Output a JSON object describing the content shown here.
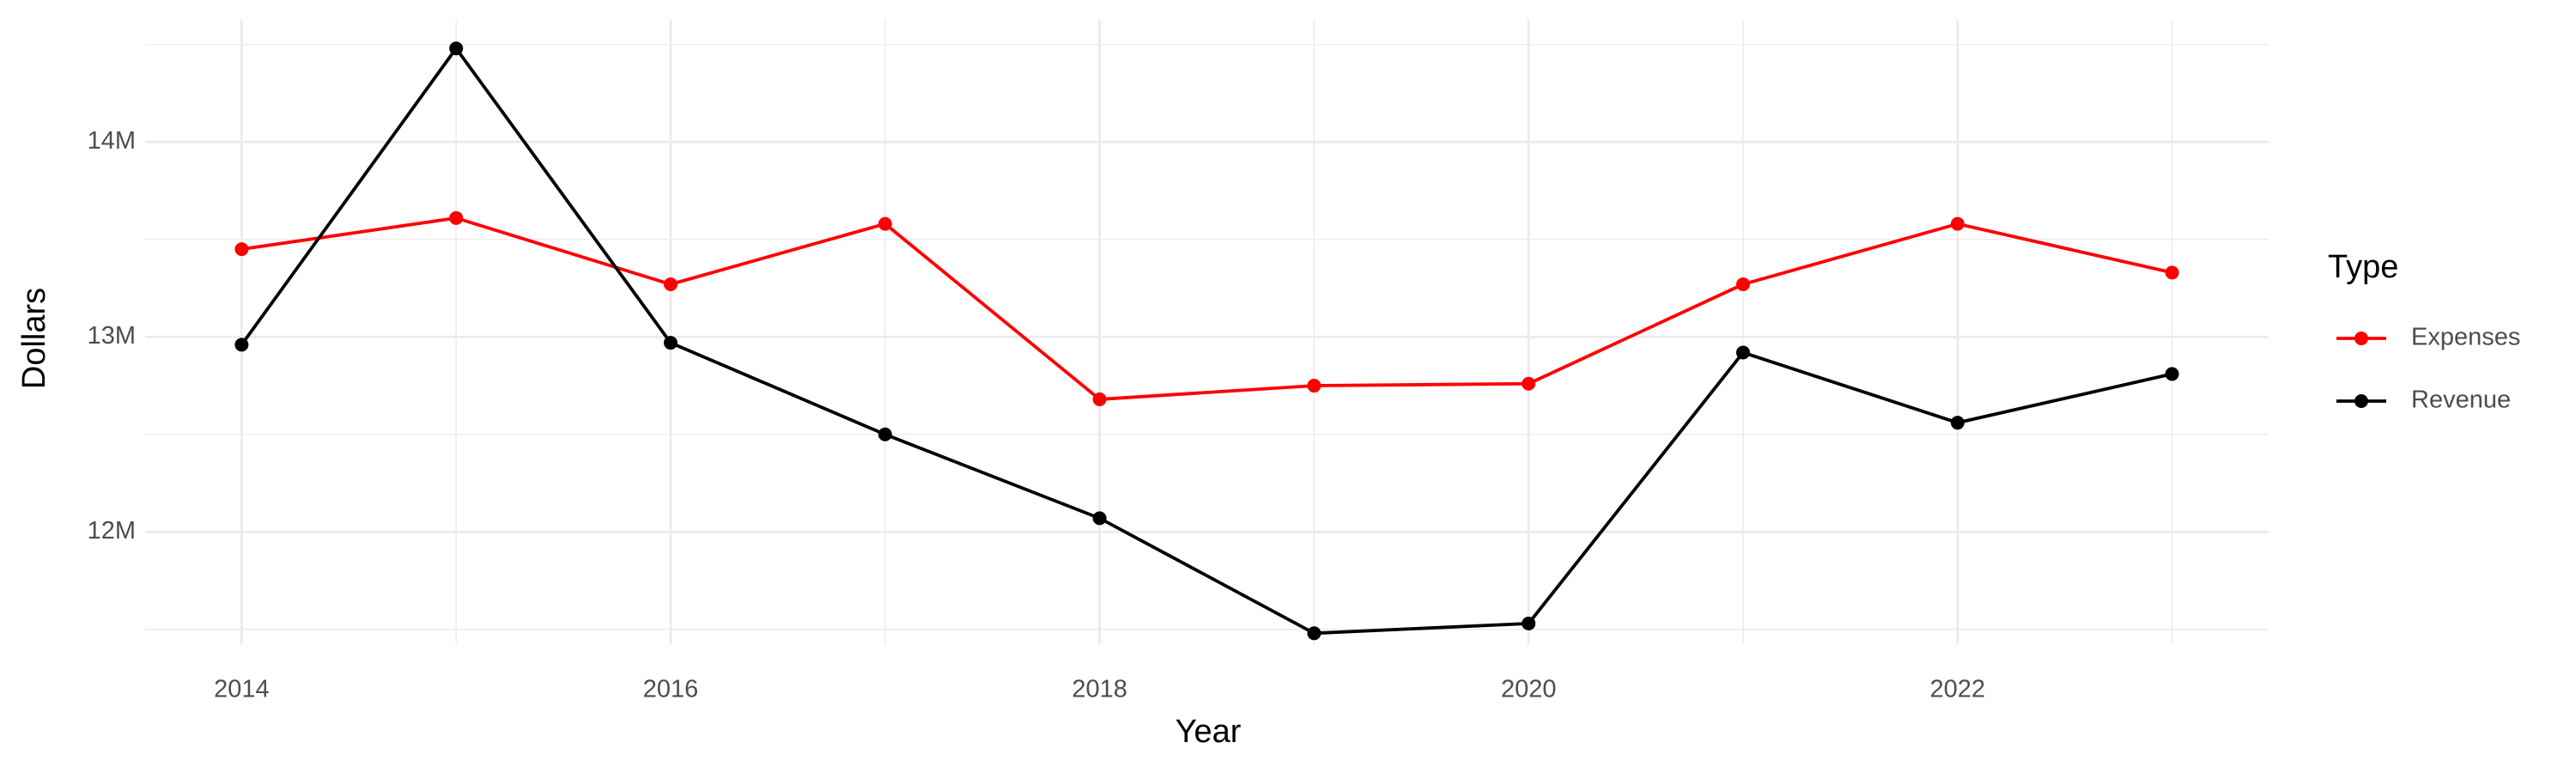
{
  "chart_data": {
    "type": "line",
    "x_label": "Year",
    "y_label": "Dollars",
    "legend_title": "Type",
    "legend": "right",
    "x": [
      2014,
      2015,
      2016,
      2017,
      2018,
      2019,
      2020,
      2021,
      2022,
      2023
    ],
    "series": [
      {
        "name": "Expenses",
        "color": "#ff0000",
        "values": [
          13450000,
          13610000,
          13270000,
          13580000,
          12680000,
          12750000,
          12760000,
          13270000,
          13580000,
          13330000
        ]
      },
      {
        "name": "Revenue",
        "color": "#000000",
        "values": [
          12960000,
          14480000,
          12970000,
          12500000,
          12070000,
          11480000,
          11530000,
          12920000,
          12560000,
          12810000
        ]
      }
    ],
    "xlim": [
      2013.55,
      2023.45
    ],
    "xticks": [
      2014,
      2016,
      2018,
      2020,
      2022
    ],
    "ylim": [
      11424000,
      14627000
    ],
    "yticks": [
      {
        "value": 12000000,
        "label": "12M"
      },
      {
        "value": 13000000,
        "label": "13M"
      },
      {
        "value": 14000000,
        "label": "14M"
      }
    ],
    "grid": true
  }
}
